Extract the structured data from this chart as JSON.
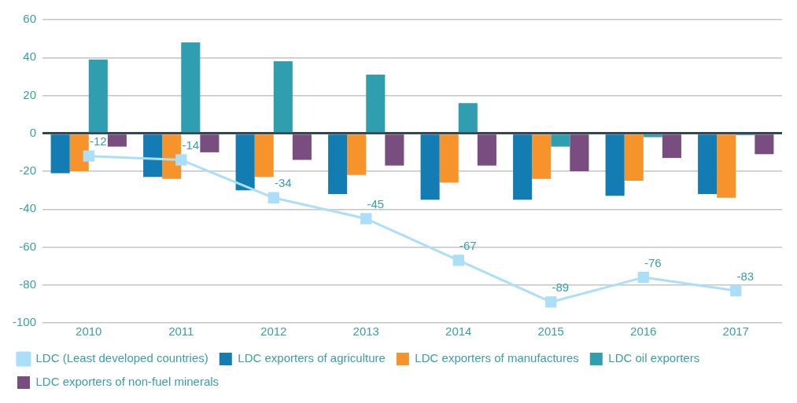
{
  "chart_data": {
    "type": "bar",
    "categories": [
      "2010",
      "2011",
      "2012",
      "2013",
      "2014",
      "2015",
      "2016",
      "2017"
    ],
    "series": [
      {
        "name": "LDC exporters of agriculture",
        "color": "#137cb3",
        "values": [
          -21,
          -23,
          -30,
          -32,
          -35,
          -35,
          -33,
          -32
        ]
      },
      {
        "name": "LDC exporters of manufactures",
        "color": "#f6932a",
        "values": [
          -20,
          -24,
          -23,
          -22,
          -26,
          -24,
          -25,
          -34
        ]
      },
      {
        "name": "LDC oil exporters",
        "color": "#2f9eae",
        "values": [
          39,
          48,
          38,
          31,
          16,
          -7,
          -2,
          -1
        ]
      },
      {
        "name": "LDC exporters of non-fuel minerals",
        "color": "#7a4d80",
        "values": [
          -7,
          -10,
          -14,
          -17,
          -17,
          -20,
          -13,
          -11
        ]
      },
      {
        "name": "LDC (Least developed countries)",
        "type": "line",
        "color": "#abdef8",
        "marker": "square",
        "values": [
          -12,
          -14,
          -34,
          -45,
          -67,
          -89,
          -76,
          -83
        ],
        "value_labels": [
          "-12",
          "-14",
          "-34",
          "-45",
          "-67",
          "-89",
          "-76",
          "-83"
        ]
      }
    ],
    "ylim": [
      -100,
      60
    ],
    "yticks": [
      -100,
      -80,
      -60,
      -40,
      -20,
      0,
      20,
      40,
      60
    ],
    "grid": "y",
    "legend": "bottom"
  }
}
